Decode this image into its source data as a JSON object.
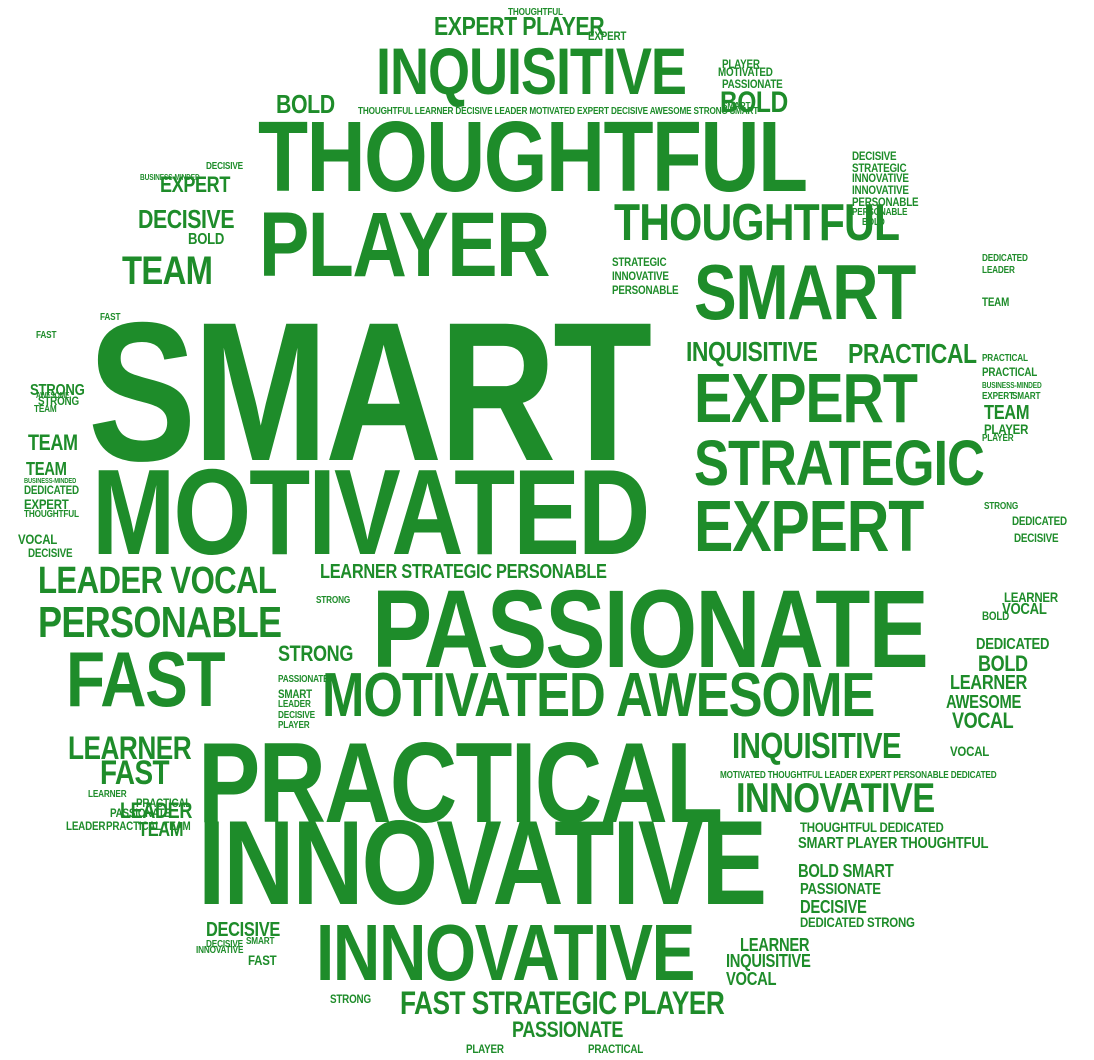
{
  "color": "#1e8c2a",
  "words": [
    {
      "text": "SMART"
    },
    {
      "text": "MOTIVATED"
    },
    {
      "text": "PASSIONATE"
    },
    {
      "text": "PRACTICAL"
    },
    {
      "text": "INNOVATIVE"
    },
    {
      "text": "THOUGHTFUL"
    },
    {
      "text": "PLAYER"
    },
    {
      "text": "INNOVATIVE"
    },
    {
      "text": "INQUISITIVE"
    },
    {
      "text": "THOUGHTFUL"
    },
    {
      "text": "SMART"
    },
    {
      "text": "EXPERT"
    },
    {
      "text": "STRATEGIC"
    },
    {
      "text": "EXPERT"
    },
    {
      "text": "FAST"
    },
    {
      "text": "MOTIVATED AWESOME"
    },
    {
      "text": "PERSONABLE"
    },
    {
      "text": "LEADER VOCAL"
    },
    {
      "text": "INQUISITIVE"
    },
    {
      "text": "PRACTICAL"
    },
    {
      "text": "INQUISITIVE"
    },
    {
      "text": "INNOVATIVE"
    },
    {
      "text": "EXPERT PLAYER"
    },
    {
      "text": "TEAM"
    },
    {
      "text": "FAST STRATEGIC PLAYER"
    },
    {
      "text": "LEARNER STRATEGIC PERSONABLE"
    },
    {
      "text": "BOLD"
    },
    {
      "text": "BOLD"
    },
    {
      "text": "DECISIVE"
    },
    {
      "text": "EXPERT"
    },
    {
      "text": "LEARNER"
    },
    {
      "text": "FAST"
    },
    {
      "text": "STRONG"
    },
    {
      "text": "TEAM"
    },
    {
      "text": "LEADER"
    },
    {
      "text": "TEAM"
    },
    {
      "text": "PASSIONATE"
    },
    {
      "text": "DECISIVE"
    },
    {
      "text": "STRATEGIC"
    },
    {
      "text": "INNOVATIVE"
    },
    {
      "text": "PERSONABLE"
    },
    {
      "text": "THOUGHTFUL LEARNER DECISIVE LEADER MOTIVATED EXPERT DECISIVE AWESOME STRONG SMART"
    },
    {
      "text": "MOTIVATED THOUGHTFUL LEADER EXPERT PERSONABLE DEDICATED"
    },
    {
      "text": "THOUGHTFUL DEDICATED"
    },
    {
      "text": "SMART PLAYER THOUGHTFUL"
    },
    {
      "text": "BOLD SMART"
    },
    {
      "text": "PASSIONATE"
    },
    {
      "text": "DECISIVE"
    },
    {
      "text": "DEDICATED STRONG"
    },
    {
      "text": "LEARNER"
    },
    {
      "text": "INQUISITIVE"
    },
    {
      "text": "VOCAL"
    },
    {
      "text": "LEARNER"
    },
    {
      "text": "AWESOME"
    },
    {
      "text": "VOCAL"
    },
    {
      "text": "BOLD"
    },
    {
      "text": "DEDICATED"
    },
    {
      "text": "VOCAL"
    },
    {
      "text": "DECISIVE"
    },
    {
      "text": "DEDICATED"
    },
    {
      "text": "TEAM"
    },
    {
      "text": "PLAYER"
    },
    {
      "text": "PRACTICAL"
    },
    {
      "text": "STRATEGIC"
    },
    {
      "text": "INNOVATIVE"
    },
    {
      "text": "PERSONABLE"
    },
    {
      "text": "DECISIVE"
    },
    {
      "text": "MOTIVATED"
    },
    {
      "text": "BOLD"
    },
    {
      "text": "STRONG"
    },
    {
      "text": "TEAM"
    },
    {
      "text": "DEDICATED"
    },
    {
      "text": "EXPERT"
    },
    {
      "text": "VOCAL"
    },
    {
      "text": "DECISIVE"
    },
    {
      "text": "LEARNER"
    },
    {
      "text": "PRACTICAL"
    },
    {
      "text": "PASSIONATE"
    },
    {
      "text": "PRACTICAL TEAM"
    },
    {
      "text": "LEADER"
    },
    {
      "text": "DECISIVE"
    },
    {
      "text": "SMART"
    },
    {
      "text": "INNOVATIVE"
    },
    {
      "text": "STRONG"
    },
    {
      "text": "FAST"
    },
    {
      "text": "SMART"
    },
    {
      "text": "PASSIONATE"
    },
    {
      "text": "LEADER"
    },
    {
      "text": "DECISIVE"
    },
    {
      "text": "PLAYER"
    },
    {
      "text": "STRONG"
    },
    {
      "text": "DECISIVE"
    },
    {
      "text": "EXPERT"
    },
    {
      "text": "PASSIONATE"
    },
    {
      "text": "THOUGHTFUL"
    },
    {
      "text": "PLAYER"
    },
    {
      "text": "PRACTICAL"
    },
    {
      "text": "PLAYER"
    },
    {
      "text": "INNOVATIVE"
    },
    {
      "text": "PERSONABLE"
    },
    {
      "text": "DEDICATED"
    },
    {
      "text": "LEADER"
    },
    {
      "text": "PRACTICAL"
    },
    {
      "text": "TEAM"
    },
    {
      "text": "PLAYER"
    },
    {
      "text": "EXPERT"
    },
    {
      "text": "SMART"
    },
    {
      "text": "BOLD"
    },
    {
      "text": "LEARNER"
    },
    {
      "text": "VOCAL"
    },
    {
      "text": "STRONG"
    },
    {
      "text": "FAST"
    },
    {
      "text": "TEAM"
    },
    {
      "text": "AWESOME"
    },
    {
      "text": "BUSINESS-MINDED"
    },
    {
      "text": "BUSINESS-MINDED"
    },
    {
      "text": "THOUGHTFUL"
    },
    {
      "text": "BUSINESS-MINDED"
    },
    {
      "text": "STRONG"
    },
    {
      "text": "SMART"
    },
    {
      "text": "FAST"
    },
    {
      "text": "BOLD"
    }
  ]
}
